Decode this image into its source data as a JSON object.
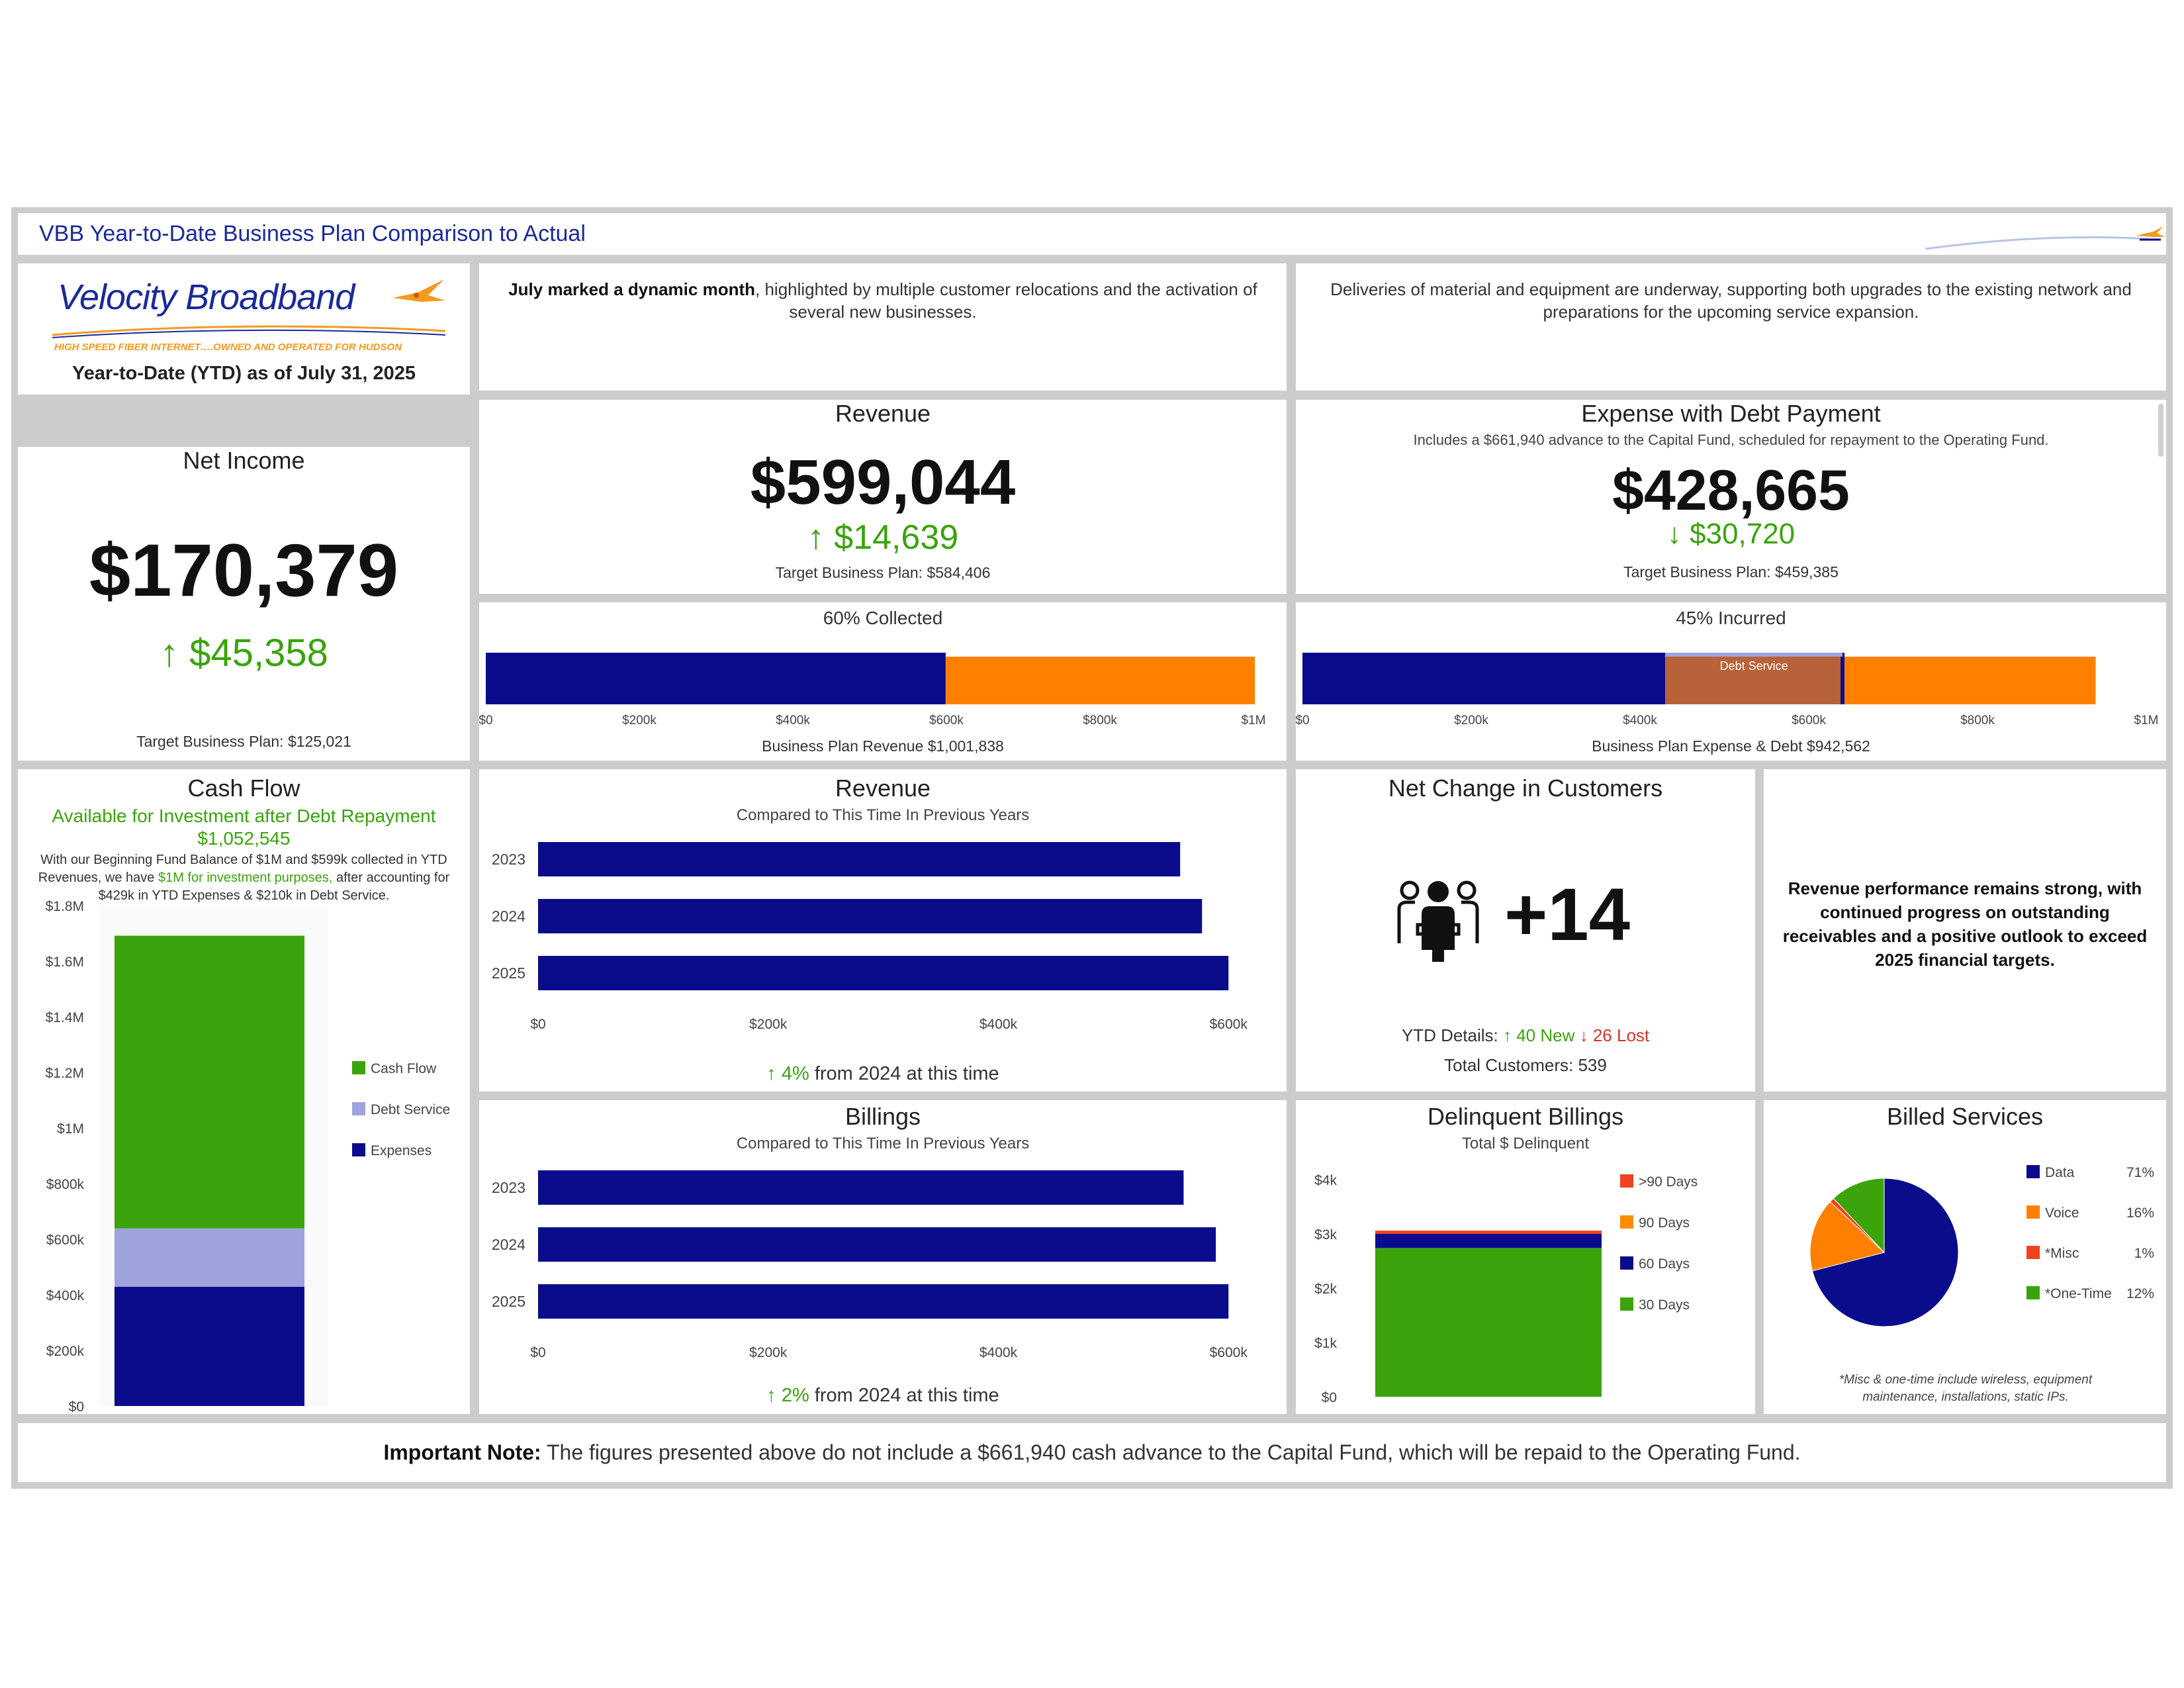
{
  "header": {
    "title": "VBB Year-to-Date Business Plan Comparison to Actual"
  },
  "brand": {
    "name_part1": "Velocity",
    "name_part2": "Broadband",
    "tagline": "HIGH SPEED FIBER INTERNET….OWNED AND OPERATED FOR HUDSON",
    "ytd_label": "Year-to-Date (YTD) as of July 31, 2025",
    "logo_icon": "hummingbird-icon"
  },
  "notes": {
    "july_bold": "July marked a dynamic month",
    "july_rest": ", highlighted by multiple customer relocations and the activation of several new businesses.",
    "deliveries": "Deliveries of material and equipment are underway, supporting both upgrades to the existing network and preparations for the upcoming service expansion.",
    "revenue_performance": "Revenue performance remains strong, with continued progress on outstanding receivables and a positive outlook to exceed 2025 financial targets."
  },
  "net_income": {
    "title": "Net Income",
    "value": "$170,379",
    "delta": "↑ $45,358",
    "target": "Target Business Plan: $125,021"
  },
  "revenue_kpi": {
    "title": "Revenue",
    "value": "$599,044",
    "delta": "↑ $14,639",
    "target": "Target Business Plan: $584,406"
  },
  "expense_kpi": {
    "title": "Expense with Debt Payment",
    "note": "Includes a $661,940 advance to the Capital Fund, scheduled for repayment to the Operating Fund.",
    "value": "$428,665",
    "delta": "↓ $30,720",
    "target": "Target Business Plan: $459,385"
  },
  "revenue_progress": {
    "title": "60% Collected",
    "caption": "Business Plan Revenue $1,001,838",
    "chart_data": {
      "type": "bar",
      "orientation": "horizontal",
      "stacked": true,
      "xlim": [
        0,
        1000000
      ],
      "ticks": [
        {
          "v": 0,
          "label": "$0"
        },
        {
          "v": 200000,
          "label": "$200k"
        },
        {
          "v": 400000,
          "label": "$400k"
        },
        {
          "v": 600000,
          "label": "$600k"
        },
        {
          "v": 800000,
          "label": "$800k"
        },
        {
          "v": 1000000,
          "label": "$1M"
        }
      ],
      "segments": [
        {
          "value": 599044,
          "color": "#0b0c8c"
        },
        {
          "value": 402794,
          "color": "#ff8000"
        }
      ]
    }
  },
  "expense_progress": {
    "title": "45% Incurred",
    "caption": "Business Plan Expense & Debt $942,562",
    "debt_label": "Debt Service",
    "chart_data": {
      "type": "bar",
      "orientation": "horizontal",
      "stacked": true,
      "xlim": [
        0,
        1000000
      ],
      "ticks": [
        {
          "v": 0,
          "label": "$0"
        },
        {
          "v": 200000,
          "label": "$200k"
        },
        {
          "v": 400000,
          "label": "$400k"
        },
        {
          "v": 600000,
          "label": "$600k"
        },
        {
          "v": 800000,
          "label": "$800k"
        },
        {
          "v": 1000000,
          "label": "$1M"
        }
      ],
      "segments": [
        {
          "value": 430000,
          "color": "#0b0c8c"
        },
        {
          "value": 210000,
          "color": "#b8623a",
          "label": "Debt Service"
        },
        {
          "value": 300000,
          "color": "#ff8000"
        }
      ],
      "marker": 640000
    }
  },
  "cash_flow": {
    "title": "Cash Flow",
    "subtitle": "Available for Investment after Debt Repayment",
    "amount": "$1,052,545",
    "desc_1": "With our Beginning Fund Balance of $1M and $599k collected in YTD Revenues, we have ",
    "desc_highlight": "$1M for investment purposes,",
    "desc_2": " after accounting for $429k in YTD Expenses & $210k in Debt Service.",
    "chart_data": {
      "type": "bar",
      "stacked": true,
      "ylim": [
        0,
        1800000
      ],
      "yticks": [
        {
          "v": 0,
          "label": "$0"
        },
        {
          "v": 200000,
          "label": "$200k"
        },
        {
          "v": 400000,
          "label": "$400k"
        },
        {
          "v": 600000,
          "label": "$600k"
        },
        {
          "v": 800000,
          "label": "$800k"
        },
        {
          "v": 1000000,
          "label": "$1M"
        },
        {
          "v": 1200000,
          "label": "$1.2M"
        },
        {
          "v": 1400000,
          "label": "$1.4M"
        },
        {
          "v": 1600000,
          "label": "$1.6M"
        },
        {
          "v": 1800000,
          "label": "$1.8M"
        }
      ],
      "series": [
        {
          "name": "Expenses",
          "value": 429000,
          "color": "#0b0c8c"
        },
        {
          "name": "Debt Service",
          "value": 210000,
          "color": "#9fa3dd"
        },
        {
          "name": "Cash Flow",
          "value": 1052545,
          "color": "#3aa40a"
        }
      ],
      "legend_order": [
        "Cash Flow",
        "Debt Service",
        "Expenses"
      ]
    }
  },
  "revenue_compare": {
    "title": "Revenue",
    "subtitle": "Compared to This Time In Previous Years",
    "footer_arrow": "↑ 4%",
    "footer_text": " from 2024 at this time",
    "chart_data": {
      "type": "bar",
      "orientation": "horizontal",
      "categories": [
        "2023",
        "2024",
        "2025"
      ],
      "values": [
        558000,
        577000,
        600000
      ],
      "xlim": [
        0,
        620000
      ],
      "ticks": [
        {
          "v": 0,
          "label": "$0"
        },
        {
          "v": 200000,
          "label": "$200k"
        },
        {
          "v": 400000,
          "label": "$400k"
        },
        {
          "v": 600000,
          "label": "$600k"
        }
      ]
    }
  },
  "billings_compare": {
    "title": "Billings",
    "subtitle": "Compared to This Time In Previous Years",
    "footer_arrow": "↑ 2%",
    "footer_text": " from 2024 at this time",
    "chart_data": {
      "type": "bar",
      "orientation": "horizontal",
      "categories": [
        "2023",
        "2024",
        "2025"
      ],
      "values": [
        561000,
        589000,
        600000
      ],
      "xlim": [
        0,
        620000
      ],
      "ticks": [
        {
          "v": 0,
          "label": "$0"
        },
        {
          "v": 200000,
          "label": "$200k"
        },
        {
          "v": 400000,
          "label": "$400k"
        },
        {
          "v": 600000,
          "label": "$600k"
        }
      ]
    }
  },
  "customers": {
    "title": "Net Change in Customers",
    "icon": "people-group-icon",
    "value": "+14",
    "details_label": "YTD Details:",
    "new": "↑ 40 New",
    "lost": "↓ 26 Lost",
    "total": "Total Customers: 539"
  },
  "delinquent": {
    "title": "Delinquent Billings",
    "subtitle": "Total $ Delinquent",
    "chart_data": {
      "type": "bar",
      "stacked": true,
      "ylim": [
        0,
        4000
      ],
      "yticks": [
        {
          "v": 0,
          "label": "$0"
        },
        {
          "v": 1000,
          "label": "$1k"
        },
        {
          "v": 2000,
          "label": "$2k"
        },
        {
          "v": 3000,
          "label": "$3k"
        },
        {
          "v": 4000,
          "label": "$4k"
        }
      ],
      "series": [
        {
          "name": "30 Days",
          "value": 2740,
          "color": "#3aa40a"
        },
        {
          "name": "60 Days",
          "value": 260,
          "color": "#0b0c8c"
        },
        {
          "name": "90 Days",
          "value": 0,
          "color": "#ff8a00"
        },
        {
          "name": ">90 Days",
          "value": 60,
          "color": "#f0421f"
        }
      ],
      "legend_order": [
        ">90 Days",
        "90 Days",
        "60 Days",
        "30 Days"
      ]
    }
  },
  "billed_services": {
    "title": "Billed Services",
    "footnote": "*Misc & one-time include wireless, equipment maintenance, installations, static IPs.",
    "chart_data": {
      "type": "pie",
      "slices": [
        {
          "name": "Data",
          "value": 71,
          "label": "71%",
          "color": "#0b0c8c"
        },
        {
          "name": "Voice",
          "value": 16,
          "label": "16%",
          "color": "#ff8000"
        },
        {
          "name": "*Misc",
          "value": 1,
          "label": "1%",
          "color": "#f0421f"
        },
        {
          "name": "*One-Time",
          "value": 12,
          "label": "12%",
          "color": "#3aa40a"
        }
      ]
    }
  },
  "footer": {
    "note_bold": "Important Note:",
    "note_text": " The figures presented above do not include a $661,940 cash advance to the Capital Fund, which will be repaid to the Operating Fund."
  }
}
